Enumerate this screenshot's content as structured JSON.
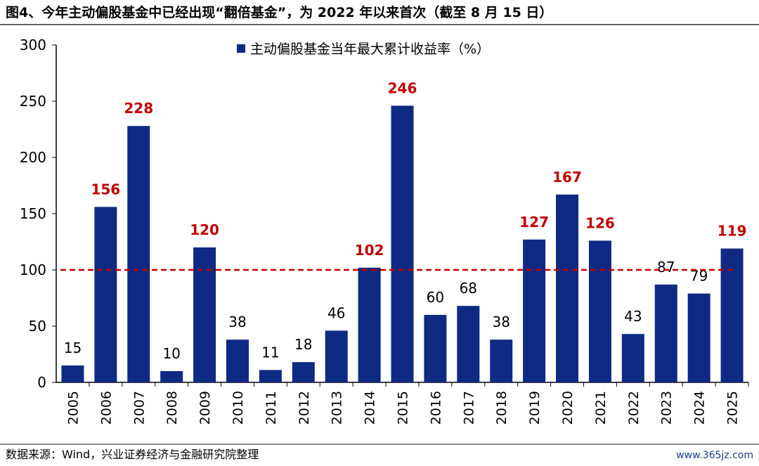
{
  "title": "图4、今年主动偏股基金中已经出现“翻倍基金”，为 2022 年以来首次（截至 8 月 15 日）",
  "footer": "数据来源：Wind，兴业证券经济与金融研究院整理",
  "watermark": "www.365jz.com",
  "colors": {
    "bar": "#0e2a82",
    "highlight_label": "#c00000",
    "reference_line": "#c00000"
  },
  "chart_data": {
    "type": "bar",
    "categories": [
      "2005",
      "2006",
      "2007",
      "2008",
      "2009",
      "2010",
      "2011",
      "2012",
      "2013",
      "2014",
      "2015",
      "2016",
      "2017",
      "2018",
      "2019",
      "2020",
      "2021",
      "2022",
      "2023",
      "2024",
      "2025"
    ],
    "series": [
      {
        "name": "主动偏股基金当年最大累计收益率（%）",
        "values": [
          15,
          156,
          228,
          10,
          120,
          38,
          11,
          18,
          46,
          102,
          246,
          60,
          68,
          38,
          127,
          167,
          126,
          43,
          87,
          79,
          119
        ]
      }
    ],
    "ylim": [
      0,
      300
    ],
    "yticks": [
      0,
      50,
      100,
      150,
      200,
      250,
      300
    ],
    "reference_line": 100,
    "legend": "top-center",
    "grid": false
  }
}
